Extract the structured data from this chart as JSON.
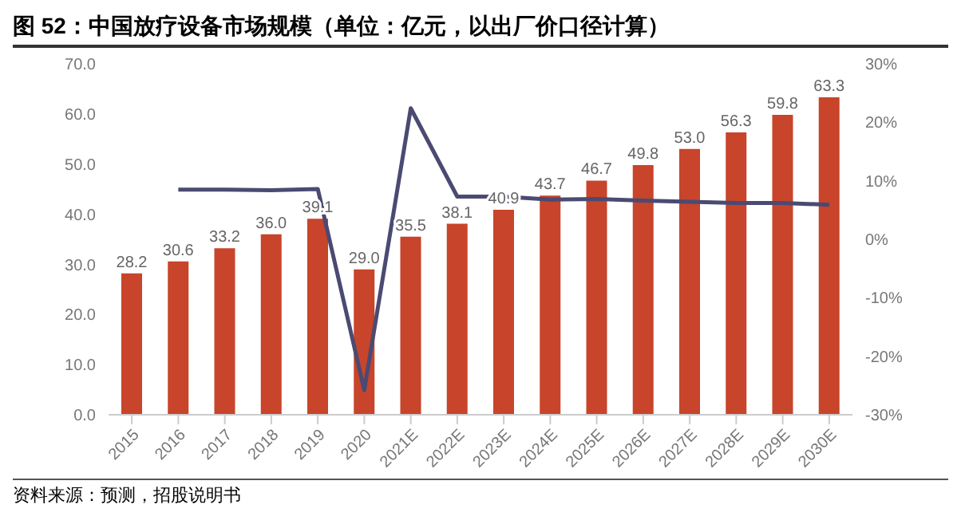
{
  "chart_data": {
    "type": "bar",
    "title": "图 52：中国放疗设备市场规模（单位：亿元，以出厂价口径计算）",
    "categories": [
      "2015",
      "2016",
      "2017",
      "2018",
      "2019",
      "2020",
      "2021E",
      "2022E",
      "2023E",
      "2024E",
      "2025E",
      "2026E",
      "2027E",
      "2028E",
      "2029E",
      "2030E"
    ],
    "series": [
      {
        "color": "#c8442a",
        "values": [
          28.2,
          30.6,
          33.2,
          36.0,
          39.1,
          29.0,
          35.5,
          38.1,
          40.9,
          43.7,
          46.7,
          49.8,
          53.0,
          56.3,
          59.8,
          63.3
        ],
        "value_labels": [
          "28.2",
          "30.6",
          "33.2",
          "36.0",
          "39.1",
          "29.0",
          "35.5",
          "38.1",
          "40.9",
          "43.7",
          "46.7",
          "49.8",
          "53.0",
          "56.3",
          "59.8",
          "63.3"
        ]
      },
      {
        "type": "line",
        "axis": "y2",
        "color": "#4a4a72",
        "values": [
          null,
          8.5,
          8.5,
          8.4,
          8.6,
          -25.8,
          22.4,
          7.3,
          7.3,
          6.8,
          6.9,
          6.6,
          6.4,
          6.2,
          6.2,
          5.9
        ]
      }
    ],
    "ylim": [
      0,
      70
    ],
    "yticks": [
      {
        "value": 0,
        "label": "0.0"
      },
      {
        "value": 10,
        "label": "10.0"
      },
      {
        "value": 20,
        "label": "20.0"
      },
      {
        "value": 30,
        "label": "30.0"
      },
      {
        "value": 40,
        "label": "40.0"
      },
      {
        "value": 50,
        "label": "50.0"
      },
      {
        "value": 60,
        "label": "60.0"
      },
      {
        "value": 70,
        "label": "70.0"
      }
    ],
    "y2lim": [
      -30,
      30
    ],
    "y2ticks": [
      {
        "value": -30,
        "label": "-30%"
      },
      {
        "value": -20,
        "label": "-20%"
      },
      {
        "value": -10,
        "label": "-10%"
      },
      {
        "value": 0,
        "label": "0%"
      },
      {
        "value": 10,
        "label": "10%"
      },
      {
        "value": 20,
        "label": "20%"
      },
      {
        "value": 30,
        "label": "30%"
      }
    ],
    "grid": false,
    "legend": false,
    "marker": "none",
    "annotations": [
      "资料来源：预测，招股说明书"
    ]
  }
}
